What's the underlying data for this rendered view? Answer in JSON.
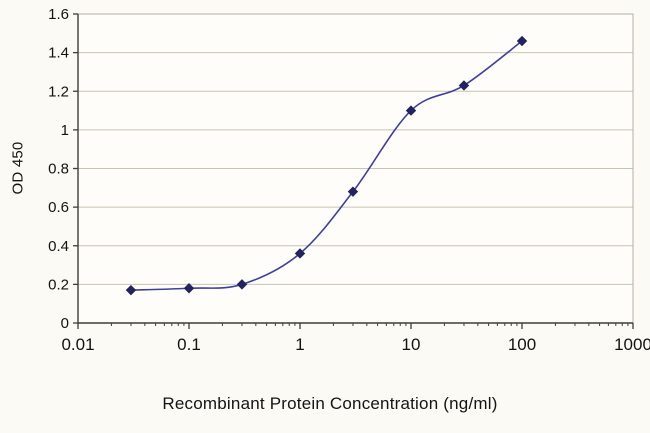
{
  "chart_data": {
    "type": "line",
    "title": "",
    "xlabel": "Recombinant Protein Concentration (ng/ml)",
    "ylabel": "OD 450",
    "x_scale": "log",
    "xlim": [
      0.01,
      1000
    ],
    "ylim": [
      0,
      1.6
    ],
    "x_ticks": [
      0.01,
      0.1,
      1,
      10,
      100,
      1000
    ],
    "x_tick_labels": [
      "0.01",
      "0.1",
      "1",
      "10",
      "100",
      "1000"
    ],
    "y_ticks": [
      0,
      0.2,
      0.4,
      0.6,
      0.8,
      1,
      1.2,
      1.4,
      1.6
    ],
    "y_tick_labels": [
      "0",
      "0.2",
      "0.4",
      "0.6",
      "0.8",
      "1",
      "1.2",
      "1.4",
      "1.6"
    ],
    "grid": "horizontal",
    "legend": "none",
    "series": [
      {
        "name": "OD 450",
        "x": [
          0.03,
          0.1,
          0.3,
          1,
          3,
          10,
          30,
          100
        ],
        "y": [
          0.17,
          0.18,
          0.2,
          0.36,
          0.68,
          1.1,
          1.23,
          1.46
        ]
      }
    ],
    "colors": {
      "line": "#3f3f9e",
      "marker": "#23235f",
      "gridline": "#c9c4b2",
      "plot_border": "#b5b0a0",
      "axis": "#3f3d38",
      "tick_text": "#131313",
      "plot_background": "#fefdfa",
      "page_background": "#fcfaf4"
    }
  }
}
